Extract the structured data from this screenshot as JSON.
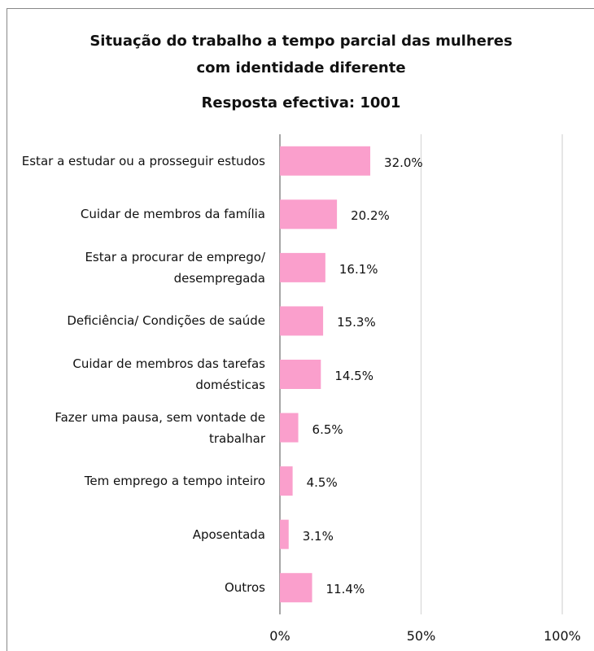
{
  "chart_data": {
    "type": "barh",
    "title": "Situação do trabalho a tempo parcial das mulheres com identidade diferente",
    "subtitle": "Resposta efectiva: 1001",
    "categories": [
      "Estar a estudar ou a prosseguir estudos",
      "Cuidar de membros da família",
      "Estar a procurar de emprego/ desempregada",
      "Deficiência/ Condições de saúde",
      "Cuidar de membros das tarefas domésticas",
      "Fazer uma pausa, sem vontade de trabalhar",
      "Tem emprego a tempo inteiro",
      "Aposentada",
      "Outros"
    ],
    "values": [
      32.0,
      20.2,
      16.1,
      15.3,
      14.5,
      6.5,
      4.5,
      3.1,
      11.4
    ],
    "value_labels": [
      "32.0%",
      "20.2%",
      "16.1%",
      "15.3%",
      "14.5%",
      "6.5%",
      "4.5%",
      "3.1%",
      "11.4%"
    ],
    "color": "#fa9fcc",
    "xlim": [
      0,
      100
    ],
    "xticks": [
      {
        "value": 0,
        "label": "0%"
      },
      {
        "value": 50,
        "label": "50%"
      },
      {
        "value": 100,
        "label": "100%"
      }
    ],
    "grid": true
  }
}
